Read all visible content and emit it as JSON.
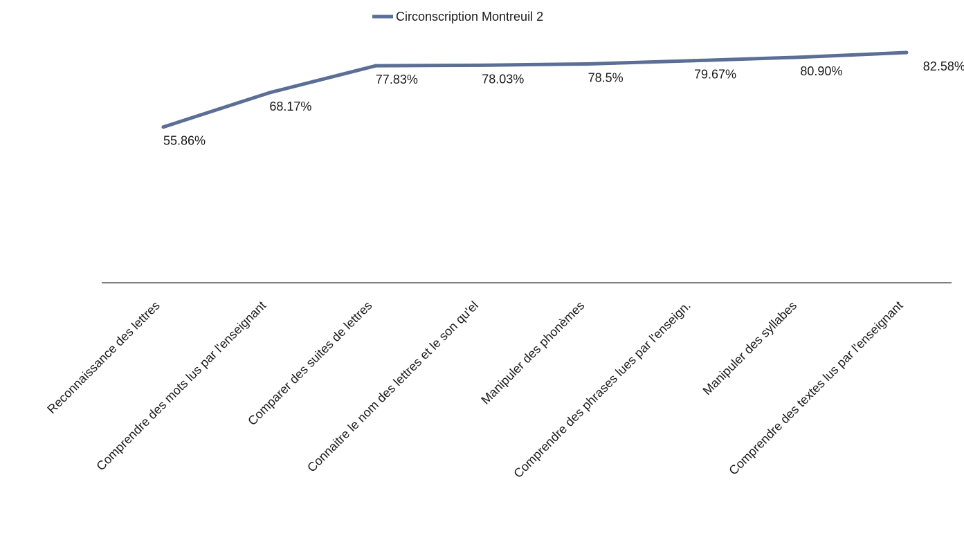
{
  "chart_data": {
    "type": "line",
    "categories": [
      "Reconnaissance des lettres",
      "Comprendre des mots lus par l'enseignant",
      "Comparer des suites de lettres",
      "Connaitre le nom des lettres et le son qu'el",
      "Manipuler des phonèmes",
      "Comprendre des phrases lues par l'enseign.",
      "Manipuler des syllabes",
      "Comprendre des textes lus par l'enseignant"
    ],
    "series": [
      {
        "name": "Circonscription Montreuil 2",
        "values": [
          55.86,
          68.17,
          77.83,
          78.03,
          78.5,
          79.67,
          80.9,
          82.58
        ],
        "labels": [
          "55.86%",
          "68.17%",
          "77.83%",
          "78.03%",
          "78.5%",
          "79.67%",
          "80.90%",
          "82.58%"
        ],
        "color": "#5b6e96"
      }
    ],
    "ylim": [
      0,
      90
    ],
    "grid": false,
    "legend": "top-center",
    "axis_color": "#555555"
  }
}
